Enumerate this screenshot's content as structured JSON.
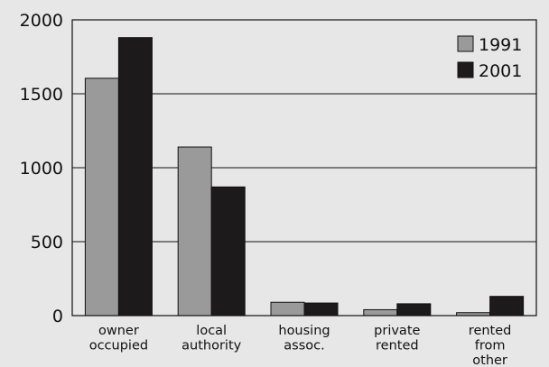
{
  "chart_data": {
    "type": "bar",
    "categories": [
      [
        "owner",
        "occupied"
      ],
      [
        "local",
        "authority"
      ],
      [
        "housing",
        "assoc."
      ],
      [
        "private",
        "rented"
      ],
      [
        "rented",
        "from",
        "other"
      ]
    ],
    "series": [
      {
        "name": "1991",
        "color": "#9a9a9a",
        "values": [
          1605,
          1140,
          90,
          40,
          20
        ]
      },
      {
        "name": "2001",
        "color": "#1c1a1b",
        "values": [
          1880,
          870,
          85,
          80,
          130
        ]
      }
    ],
    "yticks": [
      0,
      500,
      1000,
      1500,
      2000
    ],
    "ylim": [
      0,
      2000
    ],
    "grid": true,
    "legend_position": "top-right",
    "xlabel": "",
    "ylabel": ""
  }
}
